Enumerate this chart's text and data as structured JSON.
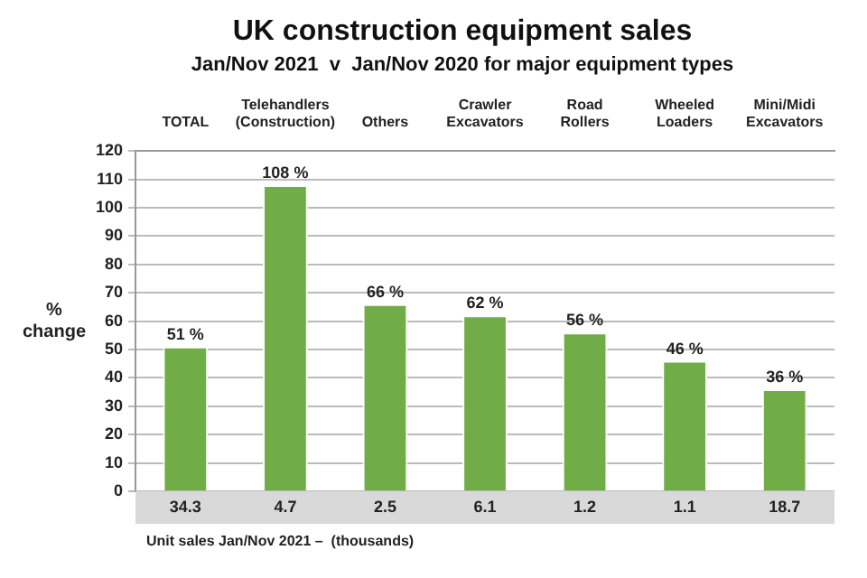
{
  "chart_data": {
    "type": "bar",
    "title": "UK construction equipment sales",
    "subtitle": "Jan/Nov 2021  v  Jan/Nov 2020 for major equipment types",
    "ylabel": "% change",
    "categories": [
      "TOTAL",
      "Telehandlers (Construction)",
      "Others",
      "Crawler Excavators",
      "Road Rollers",
      "Wheeled Loaders",
      "Mini/Midi Excavators"
    ],
    "values": [
      51,
      108,
      66,
      62,
      56,
      46,
      36
    ],
    "value_labels": [
      "51 %",
      "108 %",
      "66 %",
      "62 %",
      "56 %",
      "46 %",
      "36 %"
    ],
    "color": "#70ad47",
    "ylim": [
      0,
      120
    ],
    "yticks": [
      0,
      10,
      20,
      30,
      40,
      50,
      60,
      70,
      80,
      90,
      100,
      110,
      120
    ],
    "grid": "y",
    "annotations": [
      "34.3",
      "4.7",
      "2.5",
      "6.1",
      "1.2",
      "1.1",
      "18.7",
      "Unit sales Jan/Nov 2021 –  (thousands)"
    ]
  }
}
